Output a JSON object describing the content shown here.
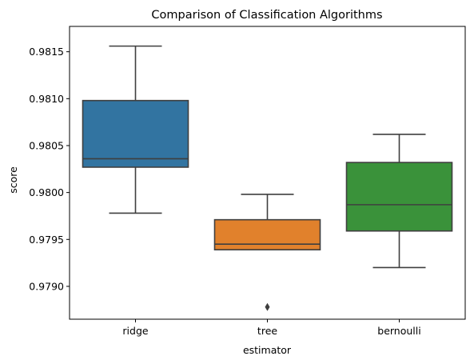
{
  "chart_data": {
    "type": "box",
    "title": "Comparison of Classification Algorithms",
    "xlabel": "estimator",
    "ylabel": "score",
    "ylim": [
      0.97865,
      0.98177
    ],
    "yticks": [
      {
        "value": 0.979,
        "label": "0.9790"
      },
      {
        "value": 0.9795,
        "label": "0.9795"
      },
      {
        "value": 0.98,
        "label": "0.9800"
      },
      {
        "value": 0.9805,
        "label": "0.9805"
      },
      {
        "value": 0.981,
        "label": "0.9810"
      },
      {
        "value": 0.9815,
        "label": "0.9815"
      }
    ],
    "grid": false,
    "categories": [
      "ridge",
      "tree",
      "bernoulli"
    ],
    "boxes": [
      {
        "category": "ridge",
        "color": "#3274a1",
        "whisker_low": 0.97978,
        "q1": 0.98027,
        "median": 0.98036,
        "q3": 0.98098,
        "whisker_high": 0.98156,
        "outliers": []
      },
      {
        "category": "tree",
        "color": "#e1812c",
        "whisker_low": 0.97939,
        "q1": 0.97939,
        "median": 0.97945,
        "q3": 0.97971,
        "whisker_high": 0.97998,
        "outliers": [
          0.97878
        ]
      },
      {
        "category": "bernoulli",
        "color": "#3a923a",
        "whisker_low": 0.9792,
        "q1": 0.97959,
        "median": 0.97987,
        "q3": 0.98032,
        "whisker_high": 0.98062,
        "outliers": []
      }
    ]
  }
}
